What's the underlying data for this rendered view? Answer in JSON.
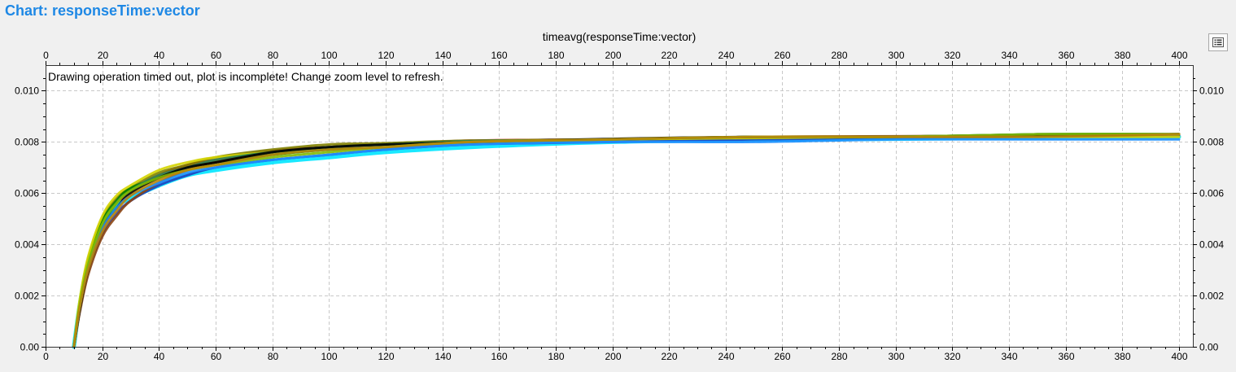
{
  "header": {
    "title": "Chart: responseTime:vector"
  },
  "toolbar": {
    "options_icon": "list-icon"
  },
  "warning": "Drawing operation timed out, plot is incomplete! Change zoom level to refresh.",
  "chart_data": {
    "type": "line",
    "title": "timeavg(responseTime:vector)",
    "xlabel": "",
    "ylabel": "",
    "xlim": [
      0,
      404
    ],
    "ylim": [
      0,
      0.011
    ],
    "x_ticks": [
      0,
      20,
      40,
      60,
      80,
      100,
      120,
      140,
      160,
      180,
      200,
      220,
      240,
      260,
      280,
      300,
      320,
      340,
      360,
      380,
      400
    ],
    "x_tick_labels": [
      "0",
      "20",
      "40",
      "60",
      "80",
      "100",
      "120",
      "140",
      "160",
      "180",
      "200",
      "220",
      "240",
      "260",
      "280",
      "300",
      "320",
      "340",
      "360",
      "380",
      "400"
    ],
    "y_ticks": [
      0,
      0.002,
      0.004,
      0.006,
      0.008,
      0.01
    ],
    "y_tick_labels": [
      "0.00",
      "0.002",
      "0.004",
      "0.006",
      "0.008",
      "0.010"
    ],
    "grid": true,
    "legend": "none",
    "x": [
      10,
      12,
      15,
      20,
      25,
      30,
      40,
      50,
      60,
      80,
      100,
      120,
      150,
      200,
      250,
      300,
      350,
      400
    ],
    "series": [
      {
        "color": "#c00000",
        "values": [
          0,
          0.0015,
          0.0031,
          0.0046,
          0.0055,
          0.0061,
          0.0067,
          0.0071,
          0.0073,
          0.00765,
          0.0078,
          0.0079,
          0.00805,
          0.0081,
          0.00815,
          0.0082,
          0.00825,
          0.0083
        ]
      },
      {
        "color": "#00e5ff",
        "values": [
          0,
          0.0016,
          0.0033,
          0.0048,
          0.0055,
          0.0058,
          0.0063,
          0.0067,
          0.0069,
          0.0072,
          0.0074,
          0.0076,
          0.0078,
          0.008,
          0.00808,
          0.00812,
          0.00816,
          0.0082
        ]
      },
      {
        "color": "#808000",
        "values": [
          0,
          0.0017,
          0.0034,
          0.005,
          0.0058,
          0.0062,
          0.0068,
          0.0071,
          0.0074,
          0.0077,
          0.0079,
          0.00795,
          0.00805,
          0.0081,
          0.00818,
          0.0082,
          0.00825,
          0.0083
        ]
      },
      {
        "color": "#008000",
        "values": [
          0,
          0.0016,
          0.0033,
          0.0049,
          0.0057,
          0.0062,
          0.0066,
          0.007,
          0.0072,
          0.0075,
          0.0077,
          0.0078,
          0.008,
          0.0081,
          0.0082,
          0.0082,
          0.0083,
          0.0083
        ]
      },
      {
        "color": "#1f3fbf",
        "values": [
          0,
          0.0014,
          0.0029,
          0.0044,
          0.0052,
          0.0057,
          0.0063,
          0.0067,
          0.007,
          0.0073,
          0.0075,
          0.0077,
          0.0079,
          0.008,
          0.0081,
          0.00815,
          0.0082,
          0.00825
        ]
      },
      {
        "color": "#8b4513",
        "values": [
          0,
          0.0013,
          0.0028,
          0.0043,
          0.0051,
          0.0057,
          0.0064,
          0.0069,
          0.0072,
          0.0076,
          0.0078,
          0.0079,
          0.008,
          0.0081,
          0.0082,
          0.00822,
          0.00826,
          0.0083
        ]
      },
      {
        "color": "#d4d400",
        "values": [
          0,
          0.0018,
          0.0035,
          0.0051,
          0.0059,
          0.0063,
          0.0069,
          0.0072,
          0.0074,
          0.0076,
          0.0078,
          0.0079,
          0.008,
          0.0081,
          0.00815,
          0.0082,
          0.0082,
          0.0082
        ]
      },
      {
        "color": "#2e8b57",
        "values": [
          0,
          0.0015,
          0.0031,
          0.0047,
          0.0056,
          0.0061,
          0.0067,
          0.007,
          0.0073,
          0.0076,
          0.0078,
          0.0079,
          0.00803,
          0.0081,
          0.0082,
          0.0082,
          0.0083,
          0.0083
        ]
      },
      {
        "color": "#000000",
        "values": [
          0,
          0.0014,
          0.003,
          0.0046,
          0.0054,
          0.006,
          0.0066,
          0.007,
          0.0072,
          0.0076,
          0.0078,
          0.0079,
          0.008,
          0.00812,
          0.0082,
          0.0082,
          0.00825,
          0.0083
        ]
      },
      {
        "color": "#1e90ff",
        "values": [
          0,
          0.0015,
          0.0031,
          0.0046,
          0.0054,
          0.0059,
          0.0064,
          0.0068,
          0.007,
          0.0073,
          0.0075,
          0.0077,
          0.0079,
          0.008,
          0.008,
          0.0081,
          0.0081,
          0.0081
        ]
      },
      {
        "color": "#7fba00",
        "values": [
          0,
          0.0016,
          0.0032,
          0.0048,
          0.0056,
          0.0061,
          0.0066,
          0.0069,
          0.0071,
          0.0074,
          0.0076,
          0.0078,
          0.008,
          0.0081,
          0.0082,
          0.0082,
          0.0083,
          0.0083
        ]
      },
      {
        "color": "#b8860b",
        "values": [
          0,
          0.0015,
          0.003,
          0.0045,
          0.0053,
          0.0059,
          0.0065,
          0.0069,
          0.0071,
          0.0075,
          0.0077,
          0.0078,
          0.008,
          0.0081,
          0.0082,
          0.0082,
          0.0082,
          0.0083
        ]
      }
    ]
  }
}
